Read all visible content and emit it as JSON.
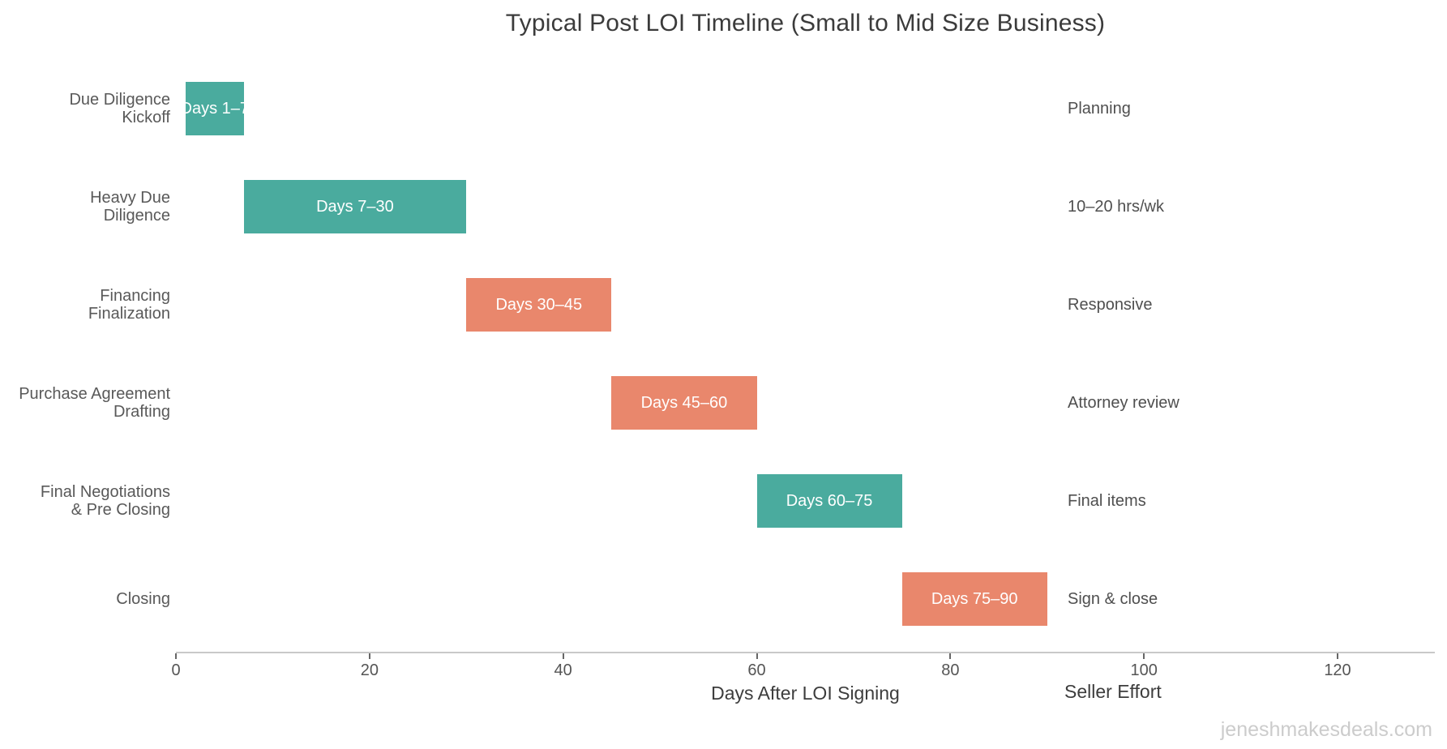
{
  "title": "Typical Post LOI Timeline (Small to Mid Size Business)",
  "watermark": "jeneshmakesdeals.com",
  "chart_data": {
    "type": "bar",
    "subtype": "gantt-horizontal",
    "title": "Typical Post LOI Timeline (Small to Mid Size Business)",
    "xlabel": "Days After LOI Signing",
    "right_column_header": "Seller Effort",
    "x_ticks": [
      0,
      20,
      40,
      60,
      80,
      100,
      120
    ],
    "x_range": [
      0,
      130
    ],
    "grid": false,
    "legend": false,
    "colors": {
      "teal": "#4aab9e",
      "salmon": "#e9876c",
      "bar_text": "#ffffff",
      "axis_line": "#c9c9c9",
      "label_text": "#595959"
    },
    "tasks": [
      {
        "label": "Due Diligence\nKickoff",
        "start": 1,
        "end": 7,
        "color": "teal",
        "bar_label": "Days 1–7",
        "note": "Planning"
      },
      {
        "label": "Heavy Due\nDiligence",
        "start": 7,
        "end": 30,
        "color": "teal",
        "bar_label": "Days 7–30",
        "note": "10–20 hrs/wk"
      },
      {
        "label": "Financing\nFinalization",
        "start": 30,
        "end": 45,
        "color": "salmon",
        "bar_label": "Days 30–45",
        "note": "Responsive"
      },
      {
        "label": "Purchase Agreement\nDrafting",
        "start": 45,
        "end": 60,
        "color": "salmon",
        "bar_label": "Days 45–60",
        "note": "Attorney review"
      },
      {
        "label": "Final Negotiations\n& Pre Closing",
        "start": 60,
        "end": 75,
        "color": "teal",
        "bar_label": "Days 60–75",
        "note": "Final items"
      },
      {
        "label": "Closing",
        "start": 75,
        "end": 90,
        "color": "salmon",
        "bar_label": "Days 75–90",
        "note": "Sign & close"
      }
    ]
  }
}
